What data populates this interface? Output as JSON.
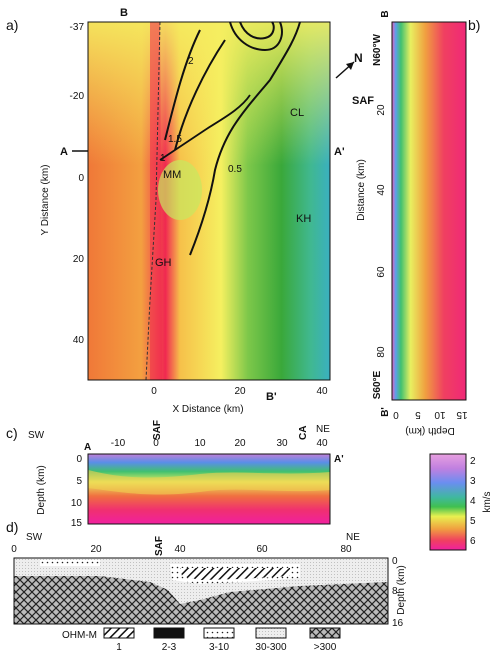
{
  "panel_a": {
    "label": "a)",
    "ylabel": "Y Distance (km)",
    "xlabel": "X Distance (km)",
    "y_ticks": [
      "-37",
      "-20",
      "0",
      "20",
      "40"
    ],
    "x_ticks": [
      "0",
      "20",
      "40"
    ],
    "section_A": "A",
    "section_A2": "A'",
    "section_B": "B",
    "section_B2": "B'",
    "north": "N",
    "contour_labels": [
      "2",
      "1.5",
      "1",
      "0.5"
    ],
    "regions": [
      "MM",
      "CL",
      "KH",
      "GH"
    ]
  },
  "panel_b": {
    "label": "b)",
    "top_label": "N60°W",
    "bottom_label": "S60°E",
    "fault": "SAF",
    "ylabel": "Distance (km)",
    "xlabel": "Depth (km)",
    "section_B": "B",
    "section_B2": "B'",
    "y_ticks": [
      "20",
      "40",
      "60",
      "80"
    ],
    "x_ticks": [
      "0",
      "5",
      "10",
      "15"
    ]
  },
  "panel_c": {
    "label": "c)",
    "sw": "SW",
    "ne": "NE",
    "saf": "SAF",
    "ca": "CA",
    "section_A": "A",
    "section_A2": "A'",
    "x_ticks": [
      "-10",
      "0",
      "10",
      "20",
      "30",
      "40"
    ],
    "ylabel": "Depth (km)",
    "y_ticks": [
      "0",
      "5",
      "10",
      "15"
    ]
  },
  "colorbar": {
    "unit": "km/s",
    "ticks": [
      "2",
      "3",
      "4",
      "5",
      "6"
    ]
  },
  "panel_d": {
    "label": "d)",
    "sw": "SW",
    "ne": "NE",
    "saf": "SAF",
    "x_ticks": [
      "0",
      "20",
      "40",
      "60",
      "80"
    ],
    "ylabel": "Depth (km)",
    "y_ticks": [
      "0",
      "8",
      "16"
    ],
    "legend_title": "OHM-M",
    "legend": [
      "1",
      "2-3",
      "3-10",
      "30-300",
      ">300"
    ]
  }
}
